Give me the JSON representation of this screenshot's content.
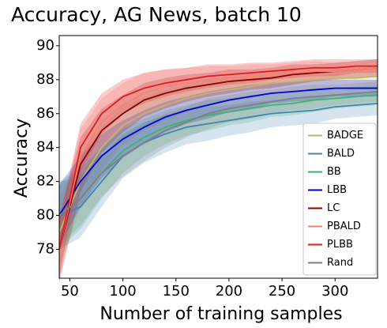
{
  "chart_data": {
    "type": "line",
    "title": "Accuracy, AG News, batch 10",
    "x_label": "Number of training samples",
    "y_label": "Accuracy",
    "x": [
      40,
      60,
      80,
      100,
      120,
      140,
      160,
      180,
      200,
      220,
      240,
      260,
      280,
      300,
      320,
      340
    ],
    "xlim": [
      40,
      340
    ],
    "xticks": [
      50,
      100,
      150,
      200,
      250,
      300
    ],
    "ylim": [
      76.3,
      90.6
    ],
    "yticks": [
      78,
      80,
      82,
      84,
      86,
      88,
      90
    ],
    "legend": "lower right",
    "series": [
      {
        "name": "BADGE",
        "color": "#bdb76b",
        "values": [
          79,
          82,
          84,
          85.3,
          86,
          86.5,
          86.9,
          87.2,
          87.4,
          87.6,
          87.8,
          87.9,
          88,
          88.1,
          88.1,
          88.2
        ],
        "std": [
          2,
          1.6,
          1.3,
          1.1,
          1,
          0.9,
          0.8,
          0.8,
          0.7,
          0.7,
          0.6,
          0.6,
          0.6,
          0.5,
          0.5,
          0.5
        ]
      },
      {
        "name": "BALD",
        "color": "#4682b4",
        "values": [
          80,
          80.5,
          82,
          83.5,
          84.3,
          84.8,
          85.2,
          85.4,
          85.6,
          85.8,
          86,
          86.1,
          86.2,
          86.4,
          86.5,
          86.6
        ],
        "std": [
          2,
          1.8,
          1.5,
          1.3,
          1.2,
          1.1,
          1,
          1,
          0.9,
          0.9,
          0.8,
          0.8,
          0.8,
          0.7,
          0.7,
          0.7
        ]
      },
      {
        "name": "BB",
        "color": "#3cb371",
        "values": [
          80,
          81,
          82.5,
          83.8,
          84.6,
          85.2,
          85.6,
          85.9,
          86.1,
          86.3,
          86.5,
          86.6,
          86.8,
          86.9,
          87,
          87.1
        ],
        "std": [
          2,
          1.8,
          1.5,
          1.3,
          1.1,
          1,
          0.9,
          0.9,
          0.8,
          0.8,
          0.7,
          0.7,
          0.7,
          0.6,
          0.6,
          0.6
        ]
      },
      {
        "name": "LBB",
        "color": "#0000cd",
        "values": [
          80,
          82,
          83.5,
          84.5,
          85.2,
          85.8,
          86.2,
          86.5,
          86.8,
          87,
          87.2,
          87.3,
          87.4,
          87.5,
          87.5,
          87.5
        ],
        "std": [
          1.8,
          1.5,
          1.3,
          1.1,
          1,
          0.9,
          0.8,
          0.8,
          0.7,
          0.7,
          0.6,
          0.6,
          0.6,
          0.5,
          0.5,
          0.5
        ]
      },
      {
        "name": "LC",
        "color": "#8b0000",
        "values": [
          78,
          83,
          85,
          86,
          86.8,
          87.2,
          87.5,
          87.7,
          87.9,
          88,
          88.1,
          88.3,
          88.4,
          88.5,
          88.6,
          88.7
        ],
        "std": [
          2,
          1.6,
          1.3,
          1.1,
          1,
          0.9,
          0.8,
          0.7,
          0.7,
          0.6,
          0.6,
          0.6,
          0.5,
          0.5,
          0.5,
          0.5
        ]
      },
      {
        "name": "PBALD",
        "color": "#fa8072",
        "values": [
          78,
          83.5,
          85.5,
          86.5,
          87.2,
          87.6,
          87.8,
          88,
          88.1,
          88.2,
          88.3,
          88.4,
          88.5,
          88.5,
          88.6,
          88.7
        ],
        "std": [
          1.8,
          1.6,
          1.4,
          1.3,
          1.2,
          1,
          0.9,
          0.8,
          0.7,
          0.7,
          0.6,
          0.6,
          0.6,
          0.5,
          0.5,
          0.5
        ]
      },
      {
        "name": "PLBB",
        "color": "#e41a1c",
        "values": [
          78,
          84,
          86,
          87,
          87.5,
          87.8,
          88,
          88.2,
          88.3,
          88.4,
          88.5,
          88.6,
          88.7,
          88.7,
          88.8,
          88.8
        ],
        "std": [
          1.6,
          1.4,
          1.2,
          1,
          0.9,
          0.8,
          0.7,
          0.7,
          0.6,
          0.6,
          0.5,
          0.5,
          0.5,
          0.5,
          0.4,
          0.4
        ]
      },
      {
        "name": "Rand",
        "color": "#808080",
        "values": [
          80,
          81,
          82.5,
          83.5,
          84.3,
          85,
          85.5,
          86,
          86.3,
          86.5,
          86.7,
          86.9,
          87,
          87.1,
          87.2,
          87.3
        ],
        "std": [
          1.8,
          1.6,
          1.4,
          1.2,
          1.1,
          1,
          0.9,
          0.9,
          0.8,
          0.8,
          0.7,
          0.7,
          0.7,
          0.6,
          0.6,
          0.6
        ]
      }
    ]
  }
}
